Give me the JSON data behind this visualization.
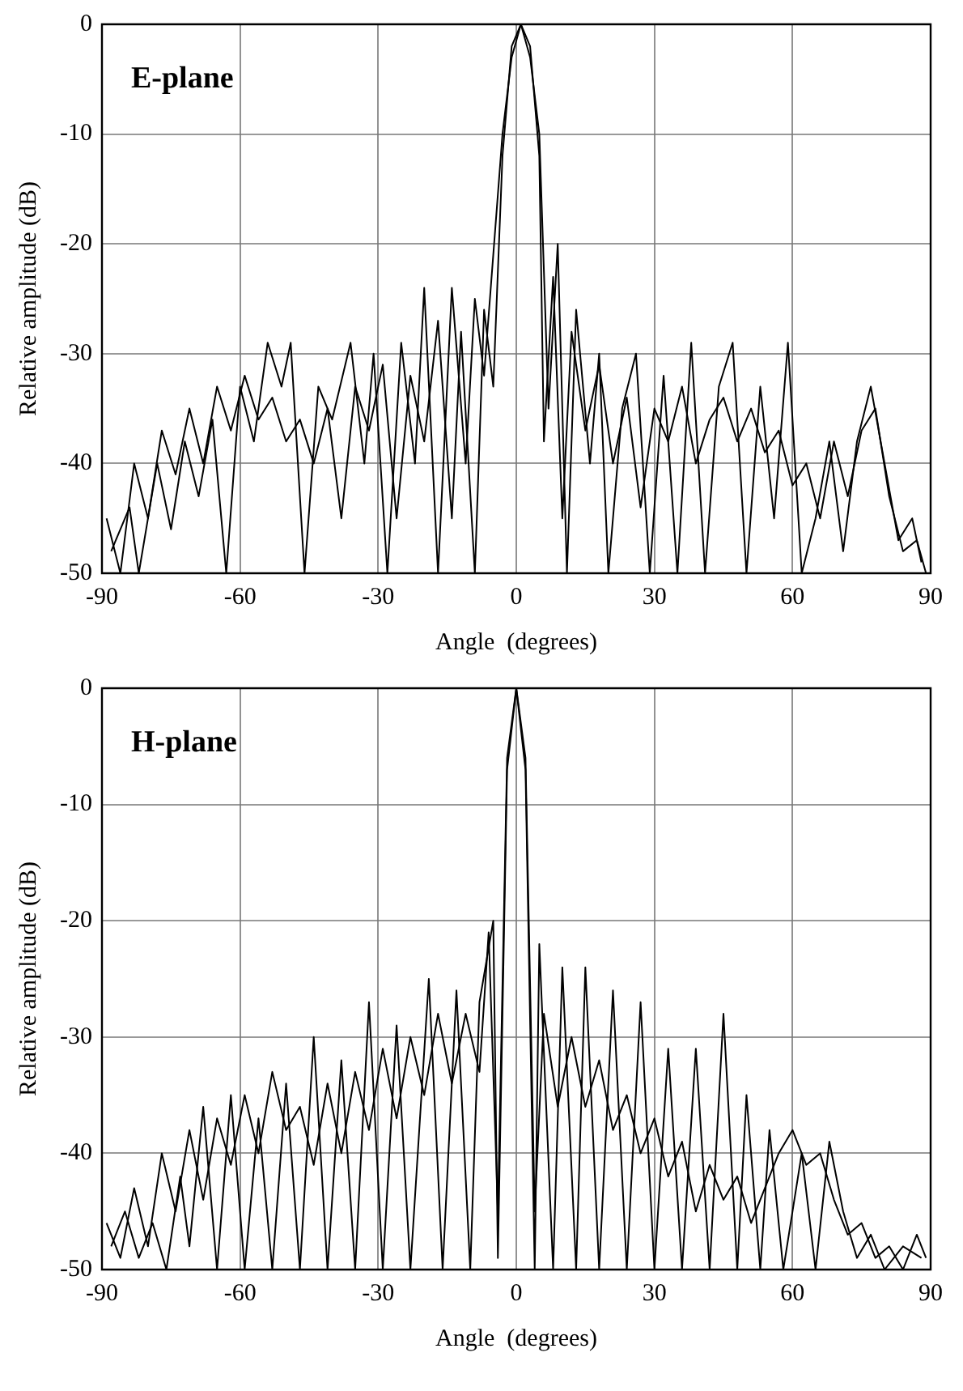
{
  "chart_data": [
    {
      "type": "line",
      "title": "E-plane",
      "xlabel": "Angle  (degrees)",
      "ylabel": "Relative amplitude (dB)",
      "xlim": [
        -90,
        90
      ],
      "xticks": [
        -90,
        -60,
        -30,
        0,
        30,
        60,
        90
      ],
      "ylim": [
        -50,
        0
      ],
      "yticks": [
        -50,
        -40,
        -30,
        -20,
        -10,
        0
      ],
      "grid": true,
      "legend": false,
      "marker": "none",
      "line_style": "solid",
      "series": [
        {
          "color": "#000000",
          "x": [
            -88,
            -84,
            -82,
            -78,
            -75,
            -72,
            -69,
            -66,
            -63,
            -60,
            -57,
            -54,
            -51,
            -49,
            -46,
            -43,
            -40,
            -36,
            -33,
            -31,
            -28,
            -25,
            -22,
            -20,
            -17,
            -14,
            -11,
            -9,
            -7,
            -5,
            -3,
            -1,
            1,
            3,
            5,
            7,
            9,
            11,
            13,
            16,
            18,
            20,
            23,
            26,
            29,
            32,
            35,
            38,
            41,
            44,
            47,
            50,
            53,
            56,
            59,
            62,
            65,
            68,
            71,
            74,
            77,
            80,
            83,
            86,
            88
          ],
          "values": [
            -48,
            -44,
            -50,
            -40,
            -46,
            -38,
            -43,
            -36,
            -50,
            -33,
            -38,
            -29,
            -33,
            -29,
            -50,
            -33,
            -36,
            -29,
            -40,
            -30,
            -50,
            -29,
            -40,
            -24,
            -50,
            -24,
            -40,
            -25,
            -32,
            -21,
            -10,
            -3,
            0,
            -3,
            -10,
            -35,
            -20,
            -50,
            -26,
            -40,
            -30,
            -50,
            -35,
            -30,
            -50,
            -32,
            -50,
            -29,
            -50,
            -33,
            -29,
            -50,
            -33,
            -45,
            -29,
            -50,
            -45,
            -38,
            -48,
            -38,
            -33,
            -40,
            -47,
            -45,
            -49
          ]
        },
        {
          "color": "#000000",
          "x": [
            -89,
            -86,
            -83,
            -80,
            -77,
            -74,
            -71,
            -68,
            -65,
            -62,
            -59,
            -56,
            -53,
            -50,
            -47,
            -44,
            -41,
            -38,
            -35,
            -32,
            -29,
            -26,
            -23,
            -20,
            -17,
            -14,
            -12,
            -9,
            -7,
            -5,
            -3,
            -1,
            1,
            3,
            5,
            6,
            8,
            10,
            12,
            15,
            18,
            21,
            24,
            27,
            30,
            33,
            36,
            39,
            42,
            45,
            48,
            51,
            54,
            57,
            60,
            63,
            66,
            69,
            72,
            75,
            78,
            81,
            84,
            87,
            89
          ],
          "values": [
            -45,
            -50,
            -40,
            -45,
            -37,
            -41,
            -35,
            -40,
            -33,
            -37,
            -32,
            -36,
            -34,
            -38,
            -36,
            -40,
            -35,
            -45,
            -33,
            -37,
            -31,
            -45,
            -32,
            -38,
            -27,
            -45,
            -28,
            -50,
            -26,
            -33,
            -12,
            -2,
            0,
            -2,
            -12,
            -38,
            -23,
            -45,
            -28,
            -37,
            -31,
            -40,
            -34,
            -44,
            -35,
            -38,
            -33,
            -40,
            -36,
            -34,
            -38,
            -35,
            -39,
            -37,
            -42,
            -40,
            -45,
            -38,
            -43,
            -37,
            -35,
            -43,
            -48,
            -47,
            -50
          ]
        }
      ]
    },
    {
      "type": "line",
      "title": "H-plane",
      "xlabel": "Angle  (degrees)",
      "ylabel": "Relative amplitude (dB)",
      "xlim": [
        -90,
        90
      ],
      "xticks": [
        -90,
        -60,
        -30,
        0,
        30,
        60,
        90
      ],
      "ylim": [
        -50,
        0
      ],
      "yticks": [
        -50,
        -40,
        -30,
        -20,
        -10,
        0
      ],
      "grid": true,
      "legend": false,
      "marker": "none",
      "line_style": "solid",
      "series": [
        {
          "color": "#000000",
          "x": [
            -88,
            -85,
            -82,
            -79,
            -76,
            -73,
            -71,
            -68,
            -65,
            -62,
            -59,
            -56,
            -53,
            -50,
            -47,
            -44,
            -41,
            -38,
            -35,
            -32,
            -29,
            -26,
            -23,
            -19,
            -16,
            -13,
            -10,
            -8,
            -5,
            -4,
            -2,
            0,
            2,
            4,
            5,
            8,
            10,
            13,
            15,
            18,
            21,
            24,
            27,
            30,
            33,
            36,
            39,
            42,
            45,
            48,
            50,
            53,
            55,
            58,
            62,
            65,
            68,
            71,
            74,
            77,
            80,
            84,
            88
          ],
          "values": [
            -48,
            -45,
            -49,
            -46,
            -50,
            -42,
            -48,
            -36,
            -50,
            -35,
            -50,
            -37,
            -50,
            -34,
            -50,
            -30,
            -50,
            -32,
            -50,
            -27,
            -50,
            -29,
            -50,
            -25,
            -50,
            -26,
            -50,
            -27,
            -20,
            -49,
            -7,
            0,
            -7,
            -50,
            -22,
            -50,
            -24,
            -50,
            -24,
            -50,
            -26,
            -50,
            -27,
            -50,
            -31,
            -50,
            -31,
            -50,
            -28,
            -50,
            -35,
            -50,
            -38,
            -50,
            -40,
            -50,
            -39,
            -45,
            -49,
            -47,
            -50,
            -48,
            -49
          ]
        },
        {
          "color": "#000000",
          "x": [
            -89,
            -86,
            -83,
            -80,
            -77,
            -74,
            -71,
            -68,
            -65,
            -62,
            -59,
            -56,
            -53,
            -50,
            -47,
            -44,
            -41,
            -38,
            -35,
            -32,
            -29,
            -26,
            -23,
            -20,
            -17,
            -14,
            -11,
            -8,
            -6,
            -4,
            -2,
            0,
            2,
            4,
            6,
            9,
            12,
            15,
            18,
            21,
            24,
            27,
            30,
            33,
            36,
            39,
            42,
            45,
            48,
            51,
            54,
            57,
            60,
            63,
            66,
            69,
            72,
            75,
            78,
            81,
            84,
            87,
            89
          ],
          "values": [
            -46,
            -49,
            -43,
            -48,
            -40,
            -45,
            -38,
            -44,
            -37,
            -41,
            -35,
            -40,
            -33,
            -38,
            -36,
            -41,
            -34,
            -40,
            -33,
            -38,
            -31,
            -37,
            -30,
            -35,
            -28,
            -34,
            -28,
            -33,
            -21,
            -45,
            -6,
            0,
            -6,
            -45,
            -28,
            -36,
            -30,
            -36,
            -32,
            -38,
            -35,
            -40,
            -37,
            -42,
            -39,
            -45,
            -41,
            -44,
            -42,
            -46,
            -43,
            -40,
            -38,
            -41,
            -40,
            -44,
            -47,
            -46,
            -49,
            -48,
            -50,
            -47,
            -49
          ]
        }
      ]
    }
  ]
}
